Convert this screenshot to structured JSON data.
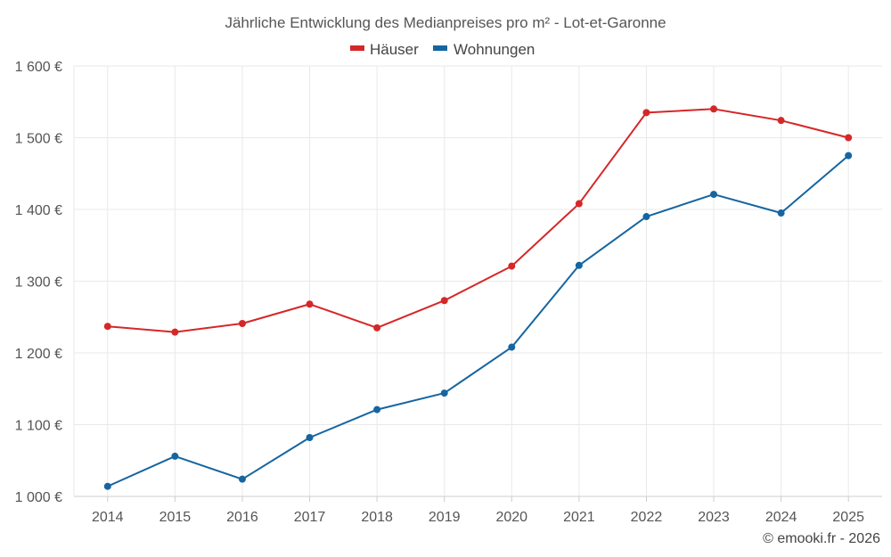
{
  "chart_data": {
    "type": "line",
    "title": "Jährliche Entwicklung des Medianpreises pro m² - Lot-et-Garonne",
    "xlabel": "",
    "ylabel": "",
    "categories": [
      "2014",
      "2015",
      "2016",
      "2017",
      "2018",
      "2019",
      "2020",
      "2021",
      "2022",
      "2023",
      "2024",
      "2025"
    ],
    "ylim": [
      1000,
      1600
    ],
    "yticks": [
      1000,
      1100,
      1200,
      1300,
      1400,
      1500,
      1600
    ],
    "ytick_labels": [
      "1 000 €",
      "1 100 €",
      "1 200 €",
      "1 300 €",
      "1 400 €",
      "1 500 €",
      "1 600 €"
    ],
    "grid": true,
    "legend_position": "top-center",
    "series": [
      {
        "name": "Häuser",
        "color": "#d62728",
        "values": [
          1237,
          1229,
          1241,
          1268,
          1235,
          1273,
          1321,
          1408,
          1535,
          1540,
          1524,
          1500
        ]
      },
      {
        "name": "Wohnungen",
        "color": "#1565a0",
        "values": [
          1014,
          1056,
          1024,
          1082,
          1121,
          1144,
          1208,
          1322,
          1390,
          1421,
          1395,
          1475
        ]
      }
    ]
  },
  "credit": "© emooki.fr - 2026"
}
